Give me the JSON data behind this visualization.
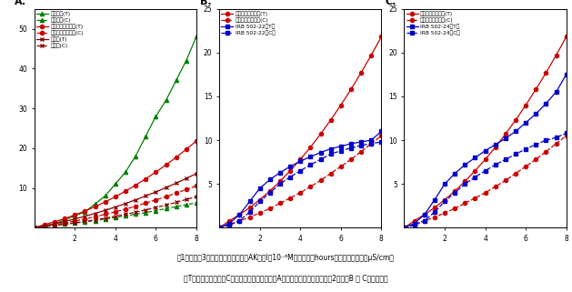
{
  "panel_A": {
    "label": "A.",
    "xlim": [
      0,
      8
    ],
    "ylim": [
      0,
      55
    ],
    "yticks": [
      10,
      20,
      30,
      40,
      50
    ],
    "xticks": [
      2,
      4,
      6,
      8
    ],
    "hours": [
      0,
      0.5,
      1,
      1.5,
      2,
      2.5,
      3,
      3.5,
      4,
      4.5,
      5,
      5.5,
      6,
      6.5,
      7,
      7.5,
      8
    ],
    "series": [
      {
        "label": "二十世紀(T)",
        "color": "#008000",
        "linestyle": "solid",
        "marker": "^",
        "data": [
          0,
          0.5,
          1,
          2,
          3,
          4,
          6,
          8,
          11,
          14,
          18,
          23,
          28,
          32,
          37,
          42,
          48
        ]
      },
      {
        "label": "二十世紀(C)",
        "color": "#008000",
        "linestyle": "dashed",
        "marker": "^",
        "data": [
          0,
          0.3,
          0.6,
          0.9,
          1.2,
          1.5,
          1.8,
          2.2,
          2.6,
          3.0,
          3.4,
          3.8,
          4.3,
          4.8,
          5.3,
          5.8,
          6.3
        ]
      },
      {
        "label": "ゴールド二十世紀(T)",
        "color": "#cc0000",
        "linestyle": "solid",
        "marker": "o",
        "data": [
          0,
          0.8,
          1.5,
          2.3,
          3.2,
          4.2,
          5.3,
          6.5,
          7.8,
          9.2,
          10.7,
          12.3,
          14.0,
          15.8,
          17.7,
          19.7,
          21.8
        ]
      },
      {
        "label": "ゴールド二十世紀(C)",
        "color": "#cc0000",
        "linestyle": "dashed",
        "marker": "o",
        "data": [
          0,
          0.4,
          0.8,
          1.2,
          1.7,
          2.2,
          2.8,
          3.4,
          4.0,
          4.7,
          5.4,
          6.2,
          7.0,
          7.8,
          8.7,
          9.6,
          10.5
        ]
      },
      {
        "label": "長十郎(T)",
        "color": "#8b0000",
        "linestyle": "solid",
        "marker": "x",
        "data": [
          0,
          0.5,
          1.0,
          1.6,
          2.2,
          2.9,
          3.6,
          4.4,
          5.2,
          6.1,
          7.0,
          8.0,
          9.0,
          10.1,
          11.2,
          12.4,
          13.6
        ]
      },
      {
        "label": "長十郎(C)",
        "color": "#8b0000",
        "linestyle": "dashed",
        "marker": "x",
        "data": [
          0,
          0.3,
          0.6,
          0.9,
          1.2,
          1.6,
          2.0,
          2.4,
          2.9,
          3.4,
          3.9,
          4.5,
          5.1,
          5.7,
          6.4,
          7.1,
          7.8
        ]
      }
    ]
  },
  "panel_B": {
    "label": "B.",
    "xlim": [
      0,
      8
    ],
    "ylim": [
      0,
      25
    ],
    "yticks": [
      5,
      10,
      15,
      20,
      25
    ],
    "xticks": [
      2,
      4,
      6,
      8
    ],
    "hours": [
      0,
      0.5,
      1,
      1.5,
      2,
      2.5,
      3,
      3.5,
      4,
      4.5,
      5,
      5.5,
      6,
      6.5,
      7,
      7.5,
      8
    ],
    "series": [
      {
        "label": "ゴールド二十世紀(T)",
        "color": "#cc0000",
        "linestyle": "solid",
        "marker": "o",
        "data": [
          0,
          0.8,
          1.5,
          2.3,
          3.2,
          4.2,
          5.3,
          6.5,
          7.8,
          9.2,
          10.7,
          12.3,
          14.0,
          15.8,
          17.7,
          19.7,
          21.8
        ]
      },
      {
        "label": "ゴールド二十世紀(C)",
        "color": "#cc0000",
        "linestyle": "dashed",
        "marker": "o",
        "data": [
          0,
          0.4,
          0.8,
          1.2,
          1.7,
          2.2,
          2.8,
          3.4,
          4.0,
          4.7,
          5.4,
          6.2,
          7.0,
          7.8,
          8.7,
          9.6,
          10.5
        ]
      },
      {
        "label": "IRB 502-22（T）",
        "color": "#0000cc",
        "linestyle": "solid",
        "marker": "s",
        "data": [
          0,
          0.5,
          1.5,
          3.0,
          4.5,
          5.5,
          6.3,
          7.0,
          7.6,
          8.1,
          8.6,
          9.0,
          9.3,
          9.6,
          9.8,
          10.0,
          11.0
        ]
      },
      {
        "label": "IRB 502-22（C）",
        "color": "#0000cc",
        "linestyle": "dashed",
        "marker": "s",
        "data": [
          0,
          0.3,
          0.8,
          1.8,
          3.0,
          4.0,
          5.0,
          5.8,
          6.5,
          7.2,
          7.8,
          8.4,
          8.8,
          9.1,
          9.4,
          9.6,
          9.8
        ]
      }
    ]
  },
  "panel_C": {
    "label": "C.",
    "xlim": [
      0,
      8
    ],
    "ylim": [
      0,
      25
    ],
    "yticks": [
      5,
      10,
      15,
      20,
      25
    ],
    "xticks": [
      2,
      4,
      6,
      8
    ],
    "hours": [
      0,
      0.5,
      1,
      1.5,
      2,
      2.5,
      3,
      3.5,
      4,
      4.5,
      5,
      5.5,
      6,
      6.5,
      7,
      7.5,
      8
    ],
    "series": [
      {
        "label": "ゴールド二十世紀(T)",
        "color": "#cc0000",
        "linestyle": "solid",
        "marker": "o",
        "data": [
          0,
          0.8,
          1.5,
          2.3,
          3.2,
          4.2,
          5.3,
          6.5,
          7.8,
          9.2,
          10.7,
          12.3,
          14.0,
          15.8,
          17.7,
          19.7,
          21.8
        ]
      },
      {
        "label": "ゴールド二十世紀(C)",
        "color": "#cc0000",
        "linestyle": "dashed",
        "marker": "o",
        "data": [
          0,
          0.4,
          0.8,
          1.2,
          1.7,
          2.2,
          2.8,
          3.4,
          4.0,
          4.7,
          5.4,
          6.2,
          7.0,
          7.8,
          8.7,
          9.6,
          10.5
        ]
      },
      {
        "label": "IRB 502-24（T）",
        "color": "#0000cc",
        "linestyle": "solid",
        "marker": "s",
        "data": [
          0,
          0.5,
          1.5,
          3.2,
          5.0,
          6.2,
          7.2,
          8.0,
          8.8,
          9.5,
          10.2,
          11.0,
          12.0,
          13.0,
          14.2,
          15.5,
          17.5
        ]
      },
      {
        "label": "IRB 502-24（C）",
        "color": "#0000cc",
        "linestyle": "dashed",
        "marker": "s",
        "data": [
          0,
          0.3,
          0.8,
          1.8,
          3.0,
          4.0,
          5.0,
          5.8,
          6.5,
          7.2,
          7.8,
          8.4,
          9.0,
          9.5,
          10.0,
          10.3,
          10.8
        ]
      }
    ]
  },
  "caption_line1": "図1　新梢第3葉リーフディスクへのAK毒素Ⅰ（10⁻⁶M）処理後（hours）の電気伝導度（μS/cm）",
  "caption_line2": "（T）：毒素処理、（C）：水処理。対照品種（A）と高レベル耐病性のうぢ2系統（B ＆ C）を示す。"
}
